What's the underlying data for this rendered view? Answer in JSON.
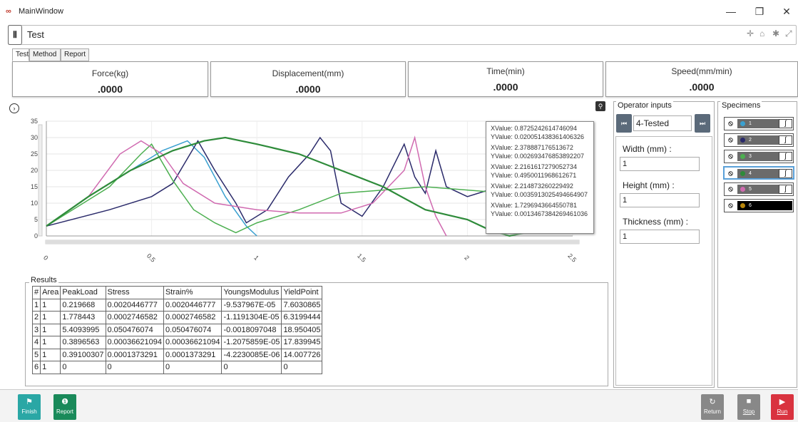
{
  "window": {
    "title": "MainWindow",
    "logo": "∞"
  },
  "toolbar": {
    "test_name": "Test",
    "pin_icon": "pin-icon"
  },
  "tabs": [
    {
      "label": "Test"
    },
    {
      "label": "Method"
    },
    {
      "label": "Report"
    }
  ],
  "readouts": [
    {
      "label": "Force(kg)",
      "value": ".0000"
    },
    {
      "label": "Displacement(mm)",
      "value": ".0000"
    },
    {
      "label": "Time(min)",
      "value": ".0000"
    },
    {
      "label": "Speed(mm/min)",
      "value": ".0000"
    }
  ],
  "tooltip": [
    {
      "x": "XValue: 0.8725242614746094",
      "y": "YValue: 0.020051438361406326"
    },
    {
      "x": "XValue: 2.378887176513672",
      "y": "YValue: 0.002693476853892207"
    },
    {
      "x": "XValue: 2.2161617279052734",
      "y": "YValue: 0.4950011968612671"
    },
    {
      "x": "XValue: 2.214873260229492",
      "y": "YValue: 0.0035913025494664907"
    },
    {
      "x": "XValue: 1.7296943664550781",
      "y": "YValue: 0.0013467384269461036"
    }
  ],
  "chart_data": {
    "type": "line",
    "xlim": [
      0,
      2.5
    ],
    "ylim": [
      0,
      35
    ],
    "x_ticks": [
      "0",
      "0.5",
      "1",
      "1.5",
      "2",
      "2.5"
    ],
    "y_ticks": [
      "0",
      "5",
      "10",
      "15",
      "20",
      "25",
      "30",
      "35"
    ],
    "series": [
      {
        "color": "#3aa0d0",
        "points": [
          [
            0.0,
            3
          ],
          [
            0.2,
            12
          ],
          [
            0.4,
            20
          ],
          [
            0.55,
            26
          ],
          [
            0.67,
            29
          ],
          [
            0.75,
            24
          ],
          [
            0.85,
            12
          ],
          [
            0.95,
            3
          ],
          [
            1.0,
            0
          ]
        ]
      },
      {
        "color": "#2a2a6a",
        "points": [
          [
            0.0,
            3
          ],
          [
            0.3,
            8
          ],
          [
            0.5,
            12
          ],
          [
            0.6,
            16
          ],
          [
            0.72,
            29
          ],
          [
            0.8,
            20
          ],
          [
            0.9,
            10
          ],
          [
            0.95,
            4
          ],
          [
            1.05,
            8
          ],
          [
            1.15,
            18
          ],
          [
            1.25,
            25
          ],
          [
            1.3,
            30
          ],
          [
            1.35,
            26
          ],
          [
            1.4,
            10
          ],
          [
            1.5,
            6
          ],
          [
            1.6,
            15
          ],
          [
            1.7,
            28
          ],
          [
            1.75,
            18
          ],
          [
            1.8,
            13
          ],
          [
            1.85,
            26
          ],
          [
            1.9,
            15
          ],
          [
            2.0,
            12
          ],
          [
            2.1,
            14
          ],
          [
            2.2,
            8
          ],
          [
            2.3,
            3
          ]
        ]
      },
      {
        "color": "#4caf50",
        "points": [
          [
            0.0,
            3
          ],
          [
            0.3,
            15
          ],
          [
            0.45,
            25
          ],
          [
            0.5,
            28
          ],
          [
            0.6,
            17
          ],
          [
            0.7,
            8
          ],
          [
            0.8,
            4
          ],
          [
            0.9,
            1
          ],
          [
            1.0,
            4
          ],
          [
            1.2,
            8
          ],
          [
            1.4,
            13
          ],
          [
            1.6,
            14
          ],
          [
            1.8,
            15
          ],
          [
            2.0,
            14
          ],
          [
            2.2,
            13
          ],
          [
            2.4,
            12
          ]
        ]
      },
      {
        "color": "#d06ab0",
        "points": [
          [
            0.0,
            3
          ],
          [
            0.2,
            12
          ],
          [
            0.35,
            25
          ],
          [
            0.45,
            29
          ],
          [
            0.55,
            25
          ],
          [
            0.65,
            16
          ],
          [
            0.8,
            10
          ],
          [
            1.0,
            8
          ],
          [
            1.2,
            7
          ],
          [
            1.4,
            7
          ],
          [
            1.55,
            10
          ],
          [
            1.7,
            20
          ],
          [
            1.75,
            30
          ],
          [
            1.8,
            15
          ],
          [
            1.85,
            6
          ],
          [
            1.9,
            0
          ]
        ]
      },
      {
        "color": "#2e8b3a",
        "points": [
          [
            0.0,
            3
          ],
          [
            0.2,
            12
          ],
          [
            0.4,
            20
          ],
          [
            0.6,
            26
          ],
          [
            0.75,
            29
          ],
          [
            0.85,
            30
          ],
          [
            1.0,
            28
          ],
          [
            1.2,
            25
          ],
          [
            1.4,
            20
          ],
          [
            1.6,
            15
          ],
          [
            1.8,
            8
          ],
          [
            2.0,
            5
          ],
          [
            2.1,
            2
          ],
          [
            2.2,
            0
          ],
          [
            2.35,
            2
          ],
          [
            2.45,
            6
          ]
        ]
      }
    ]
  },
  "results": {
    "title": "Results",
    "columns": [
      "#",
      "Area",
      "PeakLoad",
      "Stress",
      "Strain%",
      "YoungsModulus",
      "YieldPoint"
    ],
    "rows": [
      [
        "1",
        "1",
        "0.219668",
        "0.0020446777",
        "0.0020446777",
        "-9.537967E-05",
        "7.6030865"
      ],
      [
        "2",
        "1",
        "1.778443",
        "0.0002746582",
        "0.0002746582",
        "-1.1191304E-05",
        "6.3199444"
      ],
      [
        "3",
        "1",
        "5.4093995",
        "0.050476074",
        "0.050476074",
        "-0.0018097048",
        "18.950405"
      ],
      [
        "4",
        "1",
        "0.3896563",
        "0.00036621094",
        "0.00036621094",
        "-1.2075859E-05",
        "17.839945"
      ],
      [
        "5",
        "1",
        "0.39100307",
        "0.0001373291",
        "0.0001373291",
        "-4.2230085E-06",
        "14.007726"
      ],
      [
        "6",
        "1",
        "0",
        "0",
        "0",
        "0",
        "0"
      ]
    ]
  },
  "operator_inputs": {
    "title": "Operator inputs",
    "specimen_selected": "4-Tested",
    "fields": [
      {
        "label": "Width (mm)  :",
        "value": "1"
      },
      {
        "label": "Height (mm)  :",
        "value": "1"
      },
      {
        "label": "Thickness (mm)  :",
        "value": "1"
      }
    ]
  },
  "specimens": {
    "title": "Specimens",
    "items": [
      {
        "num": "1",
        "color": "#3aa0d0"
      },
      {
        "num": "2",
        "color": "#2a2a6a"
      },
      {
        "num": "3",
        "color": "#4caf50"
      },
      {
        "num": "4",
        "color": "#2e8b3a"
      },
      {
        "num": "5",
        "color": "#d06ab0"
      },
      {
        "num": "6",
        "color": "#b8860b"
      }
    ]
  },
  "bottom_buttons": [
    {
      "label": "Finish",
      "color": "#2aa7a5",
      "icon": "flag-icon"
    },
    {
      "label": "Report",
      "color": "#1a8a5a",
      "icon": "info-icon"
    },
    {
      "label": "Return",
      "color": "#888888",
      "icon": "return-icon"
    },
    {
      "label": "Stop",
      "color": "#888888",
      "icon": "stop-icon"
    },
    {
      "label": "Run",
      "color": "#d9333f",
      "icon": "play-icon"
    }
  ]
}
